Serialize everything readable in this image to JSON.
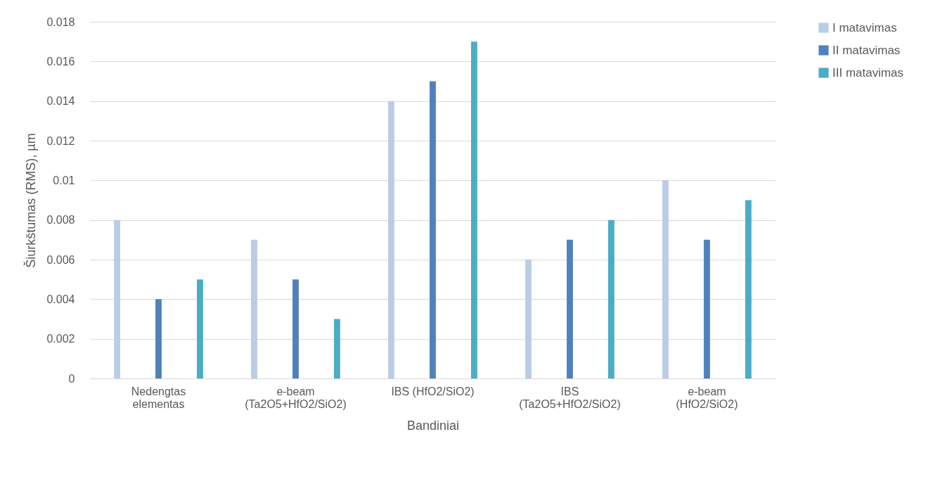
{
  "chart_data": {
    "type": "bar",
    "xlabel": "Bandiniai",
    "ylabel": "Šiurkštumas (RMS), µm",
    "categories": [
      "Nedengtas\nelementas",
      "e-beam\n(Ta2O5+HfO2/SiO2)",
      "IBS (HfO2/SiO2)",
      "IBS\n(Ta2O5+HfO2/SiO2)",
      "e-beam\n(HfO2/SiO2)"
    ],
    "series": [
      {
        "name": "I matavimas",
        "color": "#b9cde5",
        "values": [
          0.008,
          0.007,
          0.014,
          0.006,
          0.01
        ]
      },
      {
        "name": "II matavimas",
        "color": "#4f81bd",
        "values": [
          0.004,
          0.005,
          0.015,
          0.007,
          0.007
        ]
      },
      {
        "name": "III matavimas",
        "color": "#4bacc6",
        "values": [
          0.005,
          0.003,
          0.017,
          0.008,
          0.009
        ]
      }
    ],
    "ylim": [
      0,
      0.018
    ],
    "yticks": [
      0,
      0.002,
      0.004,
      0.006,
      0.008,
      0.01,
      0.012,
      0.014,
      0.016,
      0.018
    ],
    "grid": "y",
    "legend": "right"
  }
}
